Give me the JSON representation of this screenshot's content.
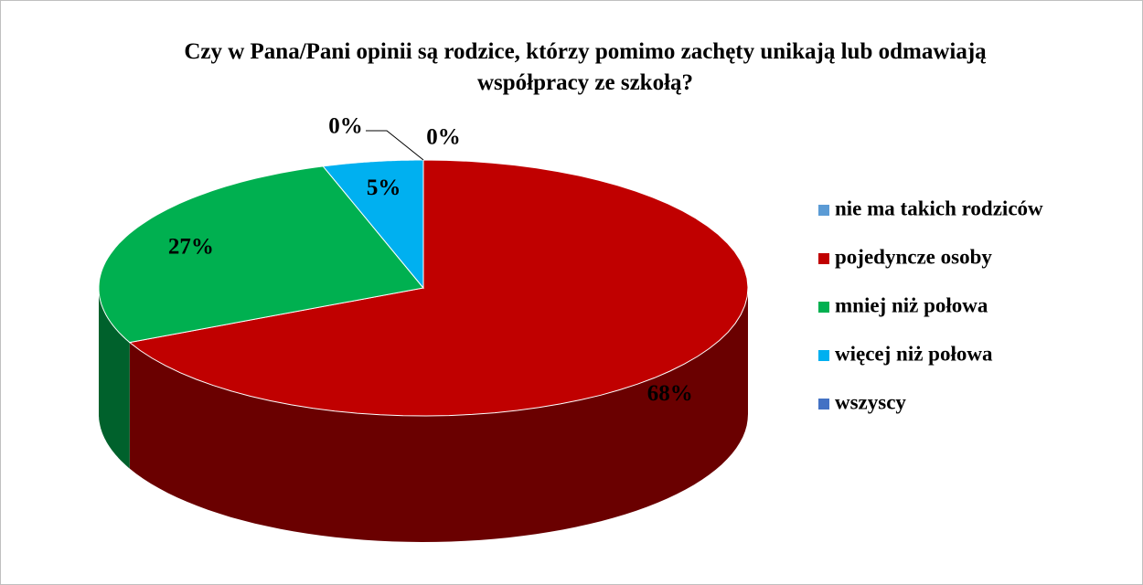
{
  "chart_data": {
    "type": "pie3d",
    "title": "Czy w Pana/Pani opinii są rodzice, którzy pomimo zachęty unikają lub odmawiają współpracy ze szkołą?",
    "categories": [
      "nie ma takich rodziców",
      "pojedyncze osoby",
      "mniej niż połowa",
      "więcej niż połowa",
      "wszyscy"
    ],
    "values": [
      0,
      68,
      27,
      5,
      0
    ],
    "value_labels": [
      "0%",
      "68%",
      "27%",
      "5%",
      "0%"
    ],
    "colors": [
      "#5b9bd5",
      "#c00000",
      "#00b050",
      "#00b0f0",
      "#4472c4"
    ],
    "legend": "right"
  }
}
